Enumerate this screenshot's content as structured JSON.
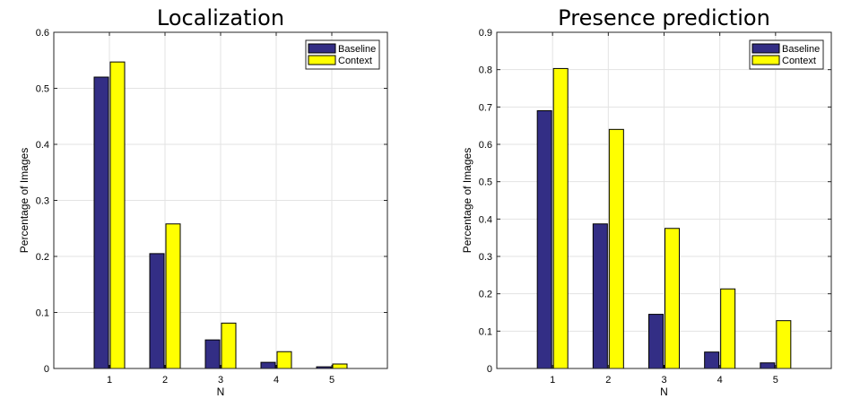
{
  "chart_data": [
    {
      "type": "bar",
      "title": "Localization",
      "xlabel": "N",
      "ylabel": "Percentage of Images",
      "categories": [
        "1",
        "2",
        "3",
        "4",
        "5"
      ],
      "xlim": [
        0,
        6
      ],
      "ylim": [
        0,
        0.6
      ],
      "yticks": [
        0,
        0.1,
        0.2,
        0.3,
        0.4,
        0.5,
        0.6
      ],
      "ytick_labels": [
        "0",
        "0.1",
        "0.2",
        "0.3",
        "0.4",
        "0.5",
        "0.6"
      ],
      "grid": true,
      "legend_position": "top-right",
      "series": [
        {
          "name": "Baseline",
          "color": "#332e85",
          "values": [
            0.52,
            0.205,
            0.051,
            0.011,
            0.003
          ]
        },
        {
          "name": "Context",
          "color": "#ffff00",
          "values": [
            0.547,
            0.258,
            0.081,
            0.03,
            0.008
          ]
        }
      ]
    },
    {
      "type": "bar",
      "title": "Presence prediction",
      "xlabel": "N",
      "ylabel": "Percentage of Images",
      "categories": [
        "1",
        "2",
        "3",
        "4",
        "5"
      ],
      "xlim": [
        0,
        6
      ],
      "ylim": [
        0,
        0.9
      ],
      "yticks": [
        0,
        0.1,
        0.2,
        0.3,
        0.4,
        0.5,
        0.6,
        0.7,
        0.8,
        0.9
      ],
      "ytick_labels": [
        "0",
        "0.1",
        "0.2",
        "0.3",
        "0.4",
        "0.5",
        "0.6",
        "0.7",
        "0.8",
        "0.9"
      ],
      "grid": true,
      "legend_position": "top-right",
      "series": [
        {
          "name": "Baseline",
          "color": "#332e85",
          "values": [
            0.69,
            0.387,
            0.145,
            0.044,
            0.015
          ]
        },
        {
          "name": "Context",
          "color": "#ffff00",
          "values": [
            0.803,
            0.64,
            0.375,
            0.213,
            0.128
          ]
        }
      ]
    }
  ]
}
